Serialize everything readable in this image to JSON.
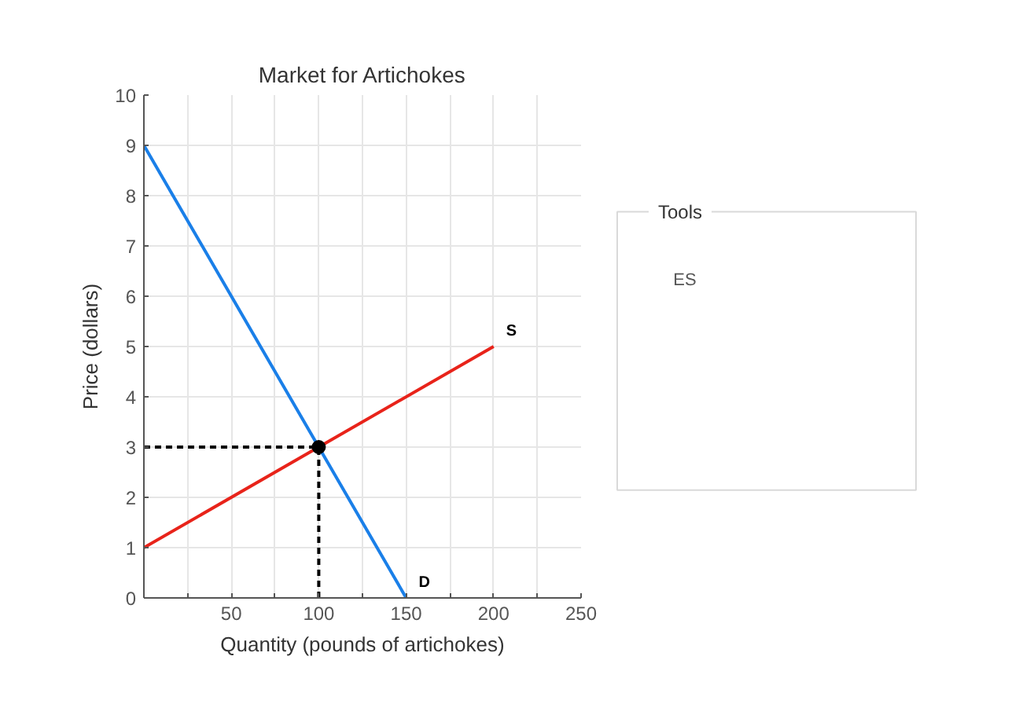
{
  "chart_data": [
    {
      "type": "line",
      "title": "Market for Artichokes",
      "xlabel": "Quantity (pounds of artichokes)",
      "ylabel": "Price (dollars)",
      "xlim": [
        0,
        250
      ],
      "ylim": [
        0,
        10
      ],
      "xticks": [
        {
          "value": 25,
          "label": null
        },
        50,
        {
          "value": 75,
          "label": null
        },
        100,
        {
          "value": 125,
          "label": null
        },
        150,
        {
          "value": 175,
          "label": null
        },
        200,
        {
          "value": 225,
          "label": null
        },
        250
      ],
      "yticks": [
        0,
        1,
        2,
        3,
        4,
        5,
        6,
        7,
        8,
        9,
        10
      ],
      "grid": true,
      "legend": false,
      "line_style": "solid",
      "marker": "none",
      "series": [
        {
          "name": "D",
          "color": "#1a7fe8",
          "x": [
            0,
            150
          ],
          "values": [
            9,
            0
          ]
        },
        {
          "name": "S",
          "color": "#e8231a",
          "x": [
            0,
            200
          ],
          "values": [
            1,
            5
          ]
        },
        {
          "color": "#000000",
          "x": [
            0,
            100
          ],
          "values": [
            3,
            3
          ],
          "line_style": "dashed"
        },
        {
          "color": "#000000",
          "x": [
            100,
            100
          ],
          "values": [
            0,
            3
          ],
          "line_style": "dashed"
        },
        {
          "type": "scatter",
          "color": "#000000",
          "x": [
            100
          ],
          "values": [
            3
          ],
          "marker": "circle"
        }
      ]
    },
    {
      "type": "other",
      "title": "Tools",
      "annotations": [
        "ES"
      ]
    }
  ]
}
